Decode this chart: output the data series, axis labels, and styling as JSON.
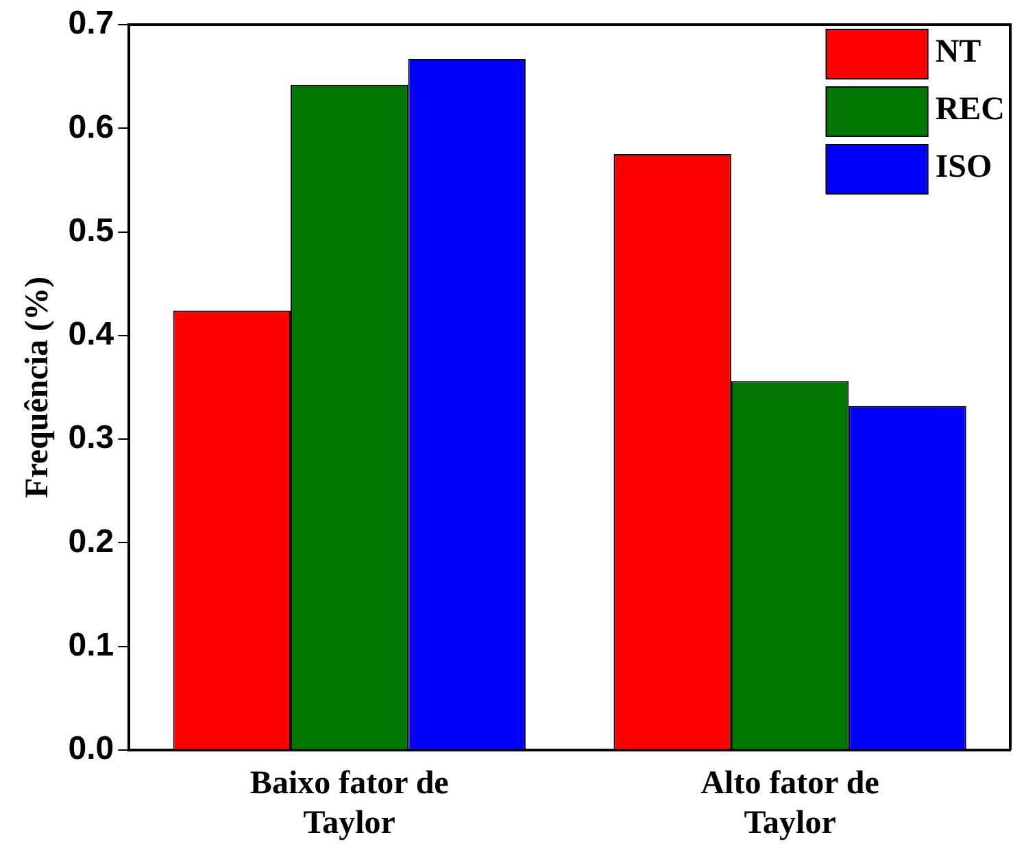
{
  "chart_data": {
    "type": "bar",
    "ylabel": "Frequência (%)",
    "categories": [
      "Baixo fator de Taylor",
      "Alto fator de Taylor"
    ],
    "series": [
      {
        "name": "NT",
        "color": "#ff0000",
        "values": [
          0.424,
          0.575
        ]
      },
      {
        "name": "REC",
        "color": "#007800",
        "values": [
          0.642,
          0.356
        ]
      },
      {
        "name": "ISO",
        "color": "#0000ff",
        "values": [
          0.667,
          0.332
        ]
      }
    ],
    "ylim": [
      0,
      0.7
    ],
    "yticks": [
      {
        "value": 0,
        "label": "0.0"
      },
      {
        "value": 0.1,
        "label": "0.1"
      },
      {
        "value": 0.2,
        "label": "0.2"
      },
      {
        "value": 0.3,
        "label": "0.3"
      },
      {
        "value": 0.4,
        "label": "0.4"
      },
      {
        "value": 0.5,
        "label": "0.5"
      },
      {
        "value": 0.6,
        "label": "0.6"
      },
      {
        "value": 0.7,
        "label": "0.7"
      }
    ],
    "grid": false,
    "legend": "top right"
  }
}
